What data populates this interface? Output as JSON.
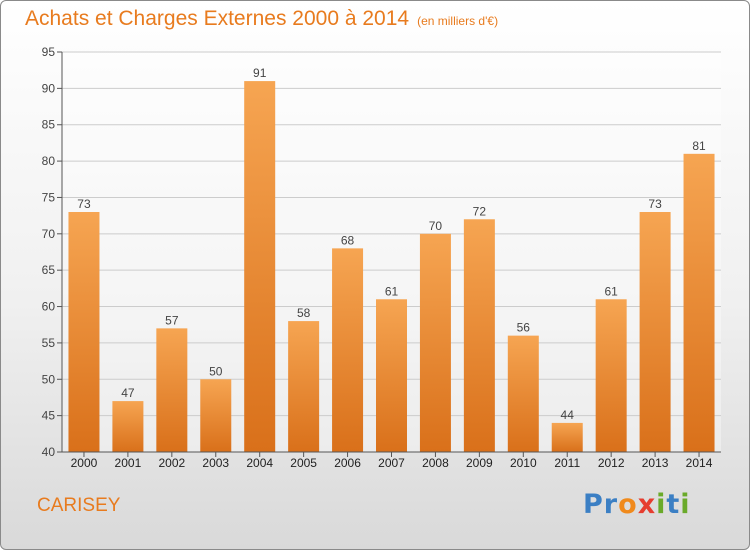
{
  "title": {
    "main": "Achats et Charges Externes 2000 à 2014",
    "unit": "(en milliers d'€)"
  },
  "commune": "CARISEY",
  "logo": {
    "text": "Proxiti",
    "letters": [
      {
        "ch": "P",
        "color": "#3b7fc4"
      },
      {
        "ch": "r",
        "color": "#3b7fc4"
      },
      {
        "ch": "o",
        "color": "#f08a1c"
      },
      {
        "ch": "x",
        "color": "#e63d2f"
      },
      {
        "ch": "i",
        "color": "#6aaa2a"
      },
      {
        "ch": "t",
        "color": "#3b7fc4"
      },
      {
        "ch": "i",
        "color": "#6aaa2a"
      }
    ]
  },
  "colors": {
    "accent": "#e87b1e",
    "bar_top": "#f6a552",
    "bar_bottom": "#d9701a",
    "grid": "#cccccc"
  },
  "chart_data": {
    "type": "bar",
    "title": "Achats et Charges Externes 2000 à 2014",
    "subtitle": "(en milliers d'€)",
    "categories": [
      "2000",
      "2001",
      "2002",
      "2003",
      "2004",
      "2005",
      "2006",
      "2007",
      "2008",
      "2009",
      "2010",
      "2011",
      "2012",
      "2013",
      "2014"
    ],
    "values": [
      73,
      47,
      57,
      50,
      91,
      58,
      68,
      61,
      70,
      72,
      56,
      44,
      61,
      73,
      81
    ],
    "ylim": [
      40,
      95
    ],
    "yticks": [
      40,
      45,
      50,
      55,
      60,
      65,
      70,
      75,
      80,
      85,
      90,
      95
    ],
    "grid": true,
    "xlabel": "",
    "ylabel": ""
  }
}
